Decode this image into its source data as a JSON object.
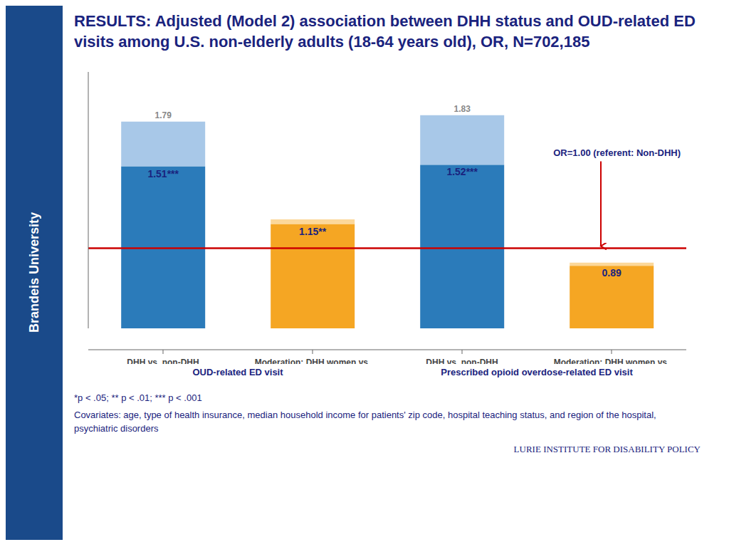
{
  "chart_data": {
    "type": "bar",
    "title": "RESULTS: Adjusted (Model 2) association between DHH status and OUD-related ED visits among U.S. non-elderly adults (18-64 years old), OR, N=702,185",
    "categories": [
      "DHH vs. non-DHH",
      "Moderation: DHH women vs.\nDHH men",
      "DHH vs. non-DHH",
      "Moderation: DHH women vs.\nDHH men"
    ],
    "category_groups": [
      "OUD-related ED visit",
      "OUD-related ED visit",
      "Prescribed opioid overdose-related ED visit",
      "Prescribed opioid overdose-related ED visit"
    ],
    "values": [
      1.51,
      1.15,
      1.52,
      0.89
    ],
    "value_labels": [
      "1.51***",
      "1.15**",
      "1.52***",
      "0.89"
    ],
    "ci_upper": [
      1.79,
      1.18,
      1.83,
      0.91
    ],
    "ci_upper_labels": [
      "1.79",
      null,
      "1.83",
      null
    ],
    "colors": [
      "#2b7bba",
      "#f5a623",
      "#2b7bba",
      "#f5a623"
    ],
    "ci_colors": [
      "#a8c8e8",
      "#fcd89a",
      "#a8c8e8",
      "#fcd89a"
    ],
    "ylim": [
      0.5,
      2.1
    ],
    "yticks": [],
    "tick_labels": "x",
    "grid": false,
    "reference_line": {
      "value": 1.0,
      "label": "OR=1.00 (referent: Non-DHH)",
      "color": "#cc0000"
    },
    "footnotes": [
      "*p < .05; ** p < .01; *** p < .001",
      "Covariates: age, type of health insurance, median household income for patients' zip code, hospital teaching status, and region of the hospital, psychiatric disorders"
    ],
    "source": "LURIE INSTITUTE FOR DISABILITY POLICY",
    "sidebar_text": "Brandeis University",
    "sidebar_color": "#1a4a8a"
  }
}
